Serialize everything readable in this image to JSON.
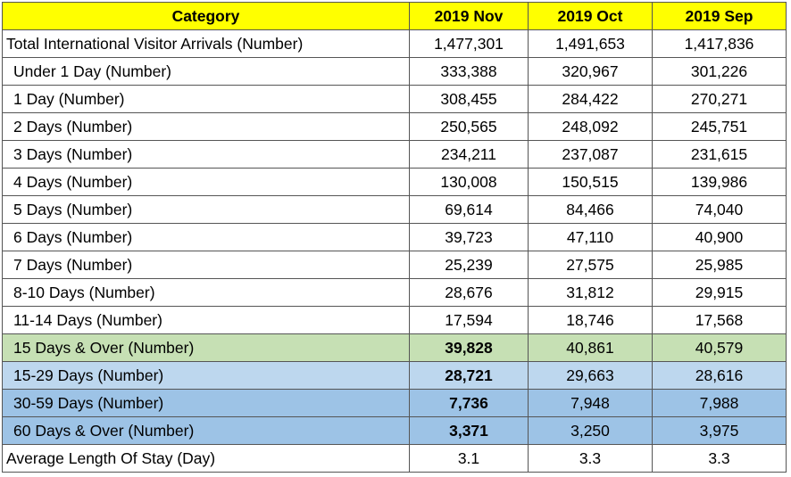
{
  "table": {
    "header": [
      "Category",
      "2019 Nov",
      "2019 Oct",
      "2019 Sep"
    ],
    "rows": [
      [
        "Total International Visitor Arrivals (Number)",
        "1,477,301",
        "1,491,653",
        "1,417,836"
      ],
      [
        "Under 1 Day (Number)",
        "333,388",
        "320,967",
        "301,226"
      ],
      [
        "1 Day (Number)",
        "308,455",
        "284,422",
        "270,271"
      ],
      [
        "2 Days (Number)",
        "250,565",
        "248,092",
        "245,751"
      ],
      [
        "3 Days (Number)",
        "234,211",
        "237,087",
        "231,615"
      ],
      [
        "4 Days (Number)",
        "130,008",
        "150,515",
        "139,986"
      ],
      [
        "5 Days (Number)",
        "69,614",
        "84,466",
        "74,040"
      ],
      [
        "6 Days (Number)",
        "39,723",
        "47,110",
        "40,900"
      ],
      [
        "7 Days (Number)",
        "25,239",
        "27,575",
        "25,985"
      ],
      [
        "8-10 Days (Number)",
        "28,676",
        "31,812",
        "29,915"
      ],
      [
        "11-14 Days (Number)",
        "17,594",
        "18,746",
        "17,568"
      ],
      [
        "15 Days & Over (Number)",
        "39,828",
        "40,861",
        "40,579"
      ],
      [
        "15-29 Days (Number)",
        "28,721",
        "29,663",
        "28,616"
      ],
      [
        "30-59 Days (Number)",
        "7,736",
        "7,948",
        "7,988"
      ],
      [
        "60 Days & Over (Number)",
        "3,371",
        "3,250",
        "3,975"
      ],
      [
        "Average Length Of Stay (Day)",
        "3.1",
        "3.3",
        "3.3"
      ]
    ]
  }
}
